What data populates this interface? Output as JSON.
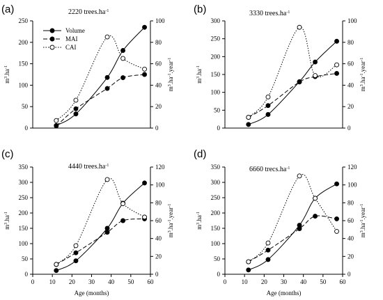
{
  "chart_data": [
    {
      "type": "line",
      "panel_label": "(a)",
      "annotation": {
        "text": "2220 trees.ha",
        "superscript": "-1"
      },
      "xlabel": "",
      "xlim": [
        0,
        60
      ],
      "x_ticks": [],
      "ylabel_left": {
        "text": "m",
        "sup1": "3",
        "text2": ".ha",
        "sup2": "-1"
      },
      "ylim_left": [
        0,
        250
      ],
      "y_ticks_left": [
        0,
        50,
        100,
        150,
        200,
        250
      ],
      "ylabel_right": {
        "text": "m",
        "sup1": "3",
        "text2": ".ha",
        "sup2": "-1",
        "text3": ".year",
        "sup3": "-1"
      },
      "ylim_right": [
        0,
        100
      ],
      "y_ticks_right": [
        0,
        20,
        40,
        60,
        80,
        100
      ],
      "legend": {
        "placement": "top-left",
        "show": true
      },
      "series": [
        {
          "name": "Volume",
          "axis": "left",
          "style": "solid",
          "marker": "filled",
          "x": [
            12,
            22,
            38,
            46,
            57
          ],
          "y": [
            6,
            33,
            118,
            181,
            235
          ]
        },
        {
          "name": "MAI",
          "axis": "right",
          "style": "dashed",
          "marker": "filled",
          "x": [
            12,
            22,
            38,
            46,
            57
          ],
          "y": [
            2,
            18,
            37,
            47,
            50
          ]
        },
        {
          "name": "CAI",
          "axis": "right",
          "style": "dotted",
          "marker": "open",
          "x": [
            12,
            22,
            38,
            46,
            57
          ],
          "y": [
            7,
            26,
            85,
            65,
            55
          ]
        }
      ]
    },
    {
      "type": "line",
      "panel_label": "(b)",
      "annotation": {
        "text": "3330 trees.ha",
        "superscript": "-1"
      },
      "xlabel": "",
      "xlim": [
        0,
        60
      ],
      "x_ticks": [],
      "ylabel_left": {
        "text": "m",
        "sup1": "3",
        "text2": ".ha",
        "sup2": "-1"
      },
      "ylim_left": [
        0,
        300
      ],
      "y_ticks_left": [
        0,
        50,
        100,
        150,
        200,
        250,
        300
      ],
      "ylabel_right": {
        "text": "m",
        "sup1": "3",
        "text2": ".ha",
        "sup2": "-1",
        "text3": ".year",
        "sup3": "-1"
      },
      "ylim_right": [
        0,
        100
      ],
      "y_ticks_right": [
        0,
        20,
        40,
        60,
        80,
        100
      ],
      "legend": {
        "show": false
      },
      "series": [
        {
          "name": "Volume",
          "axis": "left",
          "style": "solid",
          "marker": "filled",
          "x": [
            12,
            22,
            38,
            46,
            57
          ],
          "y": [
            10,
            38,
            130,
            185,
            243
          ]
        },
        {
          "name": "MAI",
          "axis": "right",
          "style": "dashed",
          "marker": "filled",
          "x": [
            12,
            22,
            38,
            46,
            57
          ],
          "y": [
            10,
            21,
            43,
            48,
            51
          ]
        },
        {
          "name": "CAI",
          "axis": "right",
          "style": "dotted",
          "marker": "open",
          "x": [
            12,
            22,
            38,
            46,
            57
          ],
          "y": [
            10,
            29,
            94,
            49,
            59
          ]
        }
      ]
    },
    {
      "type": "line",
      "panel_label": "(c)",
      "annotation": {
        "text": "4440 trees.ha",
        "superscript": "-1"
      },
      "xlabel": "Age (months)",
      "xlim": [
        0,
        60
      ],
      "x_ticks": [
        0,
        10,
        20,
        30,
        40,
        50,
        60
      ],
      "ylabel_left": {
        "text": "m",
        "sup1": "3",
        "text2": ".ha",
        "sup2": "-1"
      },
      "ylim_left": [
        0,
        350
      ],
      "y_ticks_left": [
        0,
        50,
        100,
        150,
        200,
        250,
        300,
        350
      ],
      "ylabel_right": {
        "text": "m",
        "sup1": "3",
        "text2": ".ha",
        "sup2": "-1",
        "text3": ".year",
        "sup3": "-1"
      },
      "ylim_right": [
        0,
        120
      ],
      "y_ticks_right": [
        0,
        20,
        40,
        60,
        80,
        100,
        120
      ],
      "legend": {
        "show": false
      },
      "series": [
        {
          "name": "Volume",
          "axis": "left",
          "style": "solid",
          "marker": "filled",
          "x": [
            12,
            22,
            38,
            46,
            57
          ],
          "y": [
            12,
            44,
            150,
            232,
            298
          ]
        },
        {
          "name": "MAI",
          "axis": "right",
          "style": "dashed",
          "marker": "filled",
          "x": [
            12,
            22,
            38,
            46,
            57
          ],
          "y": [
            11,
            24,
            47,
            60,
            62
          ]
        },
        {
          "name": "CAI",
          "axis": "right",
          "style": "dotted",
          "marker": "open",
          "x": [
            12,
            22,
            38,
            46,
            57
          ],
          "y": [
            11,
            32,
            106,
            79,
            64
          ]
        }
      ]
    },
    {
      "type": "line",
      "panel_label": "(d)",
      "annotation": {
        "text": "6660 trecs.ha",
        "superscript": "-1"
      },
      "xlabel": "Age (months)",
      "xlim": [
        0,
        60
      ],
      "x_ticks": [
        0,
        10,
        20,
        30,
        40,
        50,
        60
      ],
      "ylabel_left": {
        "text": "m",
        "sup1": "3",
        "text2": ".ha",
        "sup2": "-1"
      },
      "ylim_left": [
        0,
        350
      ],
      "y_ticks_left": [
        0,
        50,
        100,
        150,
        200,
        250,
        300,
        350
      ],
      "ylabel_right": {
        "text": "m",
        "sup1": "3",
        "text2": ".ha",
        "sup2": "-1",
        "text3": ".year",
        "sup3": "-1"
      },
      "ylim_right": [
        0,
        120
      ],
      "y_ticks_right": [
        0,
        20,
        40,
        60,
        80,
        100,
        120
      ],
      "legend": {
        "show": false
      },
      "series": [
        {
          "name": "Volume",
          "axis": "left",
          "style": "solid",
          "marker": "filled",
          "x": [
            12,
            22,
            38,
            46,
            57
          ],
          "y": [
            14,
            48,
            160,
            248,
            295
          ]
        },
        {
          "name": "MAI",
          "axis": "right",
          "style": "dashed",
          "marker": "filled",
          "x": [
            12,
            22,
            38,
            46,
            57
          ],
          "y": [
            14,
            27,
            51,
            65,
            62
          ]
        },
        {
          "name": "CAI",
          "axis": "right",
          "style": "dotted",
          "marker": "open",
          "x": [
            12,
            22,
            38,
            46,
            57
          ],
          "y": [
            14,
            35,
            110,
            85,
            48
          ]
        }
      ]
    }
  ]
}
